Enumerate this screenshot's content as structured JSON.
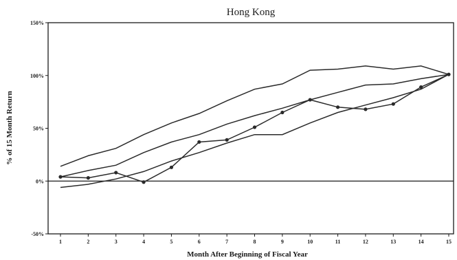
{
  "chart_data": {
    "type": "line",
    "title": "Hong Kong",
    "xlabel": "Month After Beginning of Fiscal Year",
    "ylabel": "% of 15 Month Return",
    "x": [
      1,
      2,
      3,
      4,
      5,
      6,
      7,
      8,
      9,
      10,
      11,
      12,
      13,
      14,
      15
    ],
    "xticks": [
      "1",
      "2",
      "3",
      "4",
      "5",
      "6",
      "7",
      "8",
      "9",
      "10",
      "11",
      "12",
      "13",
      "14",
      "15"
    ],
    "ylim": [
      -50,
      150
    ],
    "yticks": [
      {
        "value": 150,
        "label": "150%"
      },
      {
        "value": 100,
        "label": "100%"
      },
      {
        "value": 50,
        "label": "50%"
      },
      {
        "value": 0,
        "label": "0%"
      },
      {
        "value": -50,
        "label": "-50%"
      }
    ],
    "grid": false,
    "series": [
      {
        "values": [
          14,
          24,
          31,
          44,
          55,
          64,
          76,
          87,
          92,
          105,
          106,
          109,
          106,
          109,
          101
        ],
        "markers": false
      },
      {
        "values": [
          4,
          10,
          15,
          27,
          37,
          44,
          54,
          62,
          69,
          77,
          84,
          91,
          92,
          97,
          101
        ],
        "markers": false
      },
      {
        "values": [
          4,
          3,
          8,
          -1,
          13,
          37,
          39,
          51,
          65,
          77,
          70,
          68,
          73,
          89,
          101
        ],
        "markers": true
      },
      {
        "values": [
          -6,
          -3,
          2,
          9,
          19,
          27,
          36,
          44,
          44,
          55,
          65,
          72,
          79,
          87,
          101
        ],
        "markers": false
      }
    ]
  }
}
